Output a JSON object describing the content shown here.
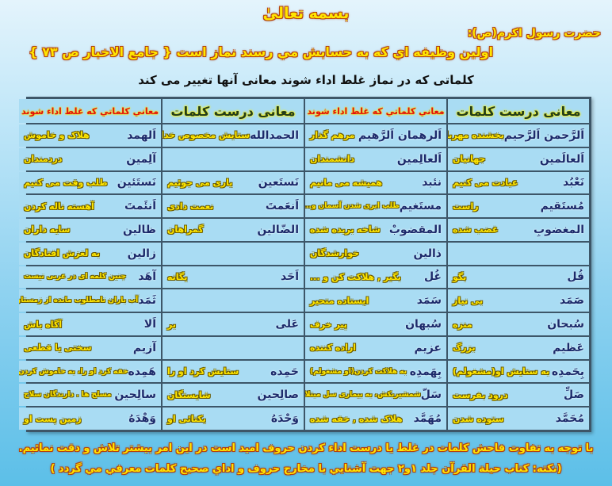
{
  "header": {
    "title": "بسمه تعالیٰ",
    "hadith_source": "حضرت رسول اکرم(ص):",
    "hadith": "اولین وظیفه اي که به حسابش مي رسند نماز است { جامع الاخبار ص ۷۳ }",
    "subtitle": "کلماتی که در نماز غلط اداء شوند معانی آنها تغییر می کند"
  },
  "table": {
    "headers": [
      "معانی درست کلمات",
      "معاني کلماتي که غلط اداء شوند",
      "معانی درست کلمات",
      "معاني کلماتي که غلط اداء شوند"
    ],
    "rows": [
      [
        {
          "word": "اَلرَّحمن اَلرَّحیم",
          "meaning": "بخشنده مهربان"
        },
        {
          "word": "اَلرهمان اَلرَّهیم",
          "meaning": "مرهم گذار"
        },
        {
          "word": "الحمدالله",
          "meaning": "ستایش مخصوص خداست"
        },
        {
          "word": "اَلهمد",
          "meaning": "هلاک و خاموش"
        }
      ],
      [
        {
          "word": "اَلعالَمین",
          "meaning": "جهانیان"
        },
        {
          "word": "اَلعالِمین",
          "meaning": "دانشمندان"
        },
        {
          "word": "",
          "meaning": ""
        },
        {
          "word": "آلِمین",
          "meaning": "دردمندان"
        }
      ],
      [
        {
          "word": "نَعْبُد",
          "meaning": "عبادت می کنیم"
        },
        {
          "word": "نئبد",
          "meaning": "همیشه می مانیم"
        },
        {
          "word": "نَستَعین",
          "meaning": "یاری می جوئیم"
        },
        {
          "word": "نَستَئین",
          "meaning": "طلب وقت می کنیم"
        }
      ],
      [
        {
          "word": "مُستَقیم",
          "meaning": "راست"
        },
        {
          "word": "مستَغیم",
          "meaning": "طلب ابری شدن آسمان و... کنند"
        },
        {
          "word": "اَنعَمتَ",
          "meaning": "نعمت دادی"
        },
        {
          "word": "اَنئَمتَ",
          "meaning": "آهسته ناله کردن"
        }
      ],
      [
        {
          "word": "المغضوبِ",
          "meaning": "غضب شده"
        },
        {
          "word": "المقضوبْ",
          "meaning": "شاخه بریده شده"
        },
        {
          "word": "الضّالین",
          "meaning": "گمراهان"
        },
        {
          "word": "ظالین",
          "meaning": "سایه داران"
        }
      ],
      [
        {
          "word": "",
          "meaning": ""
        },
        {
          "word": "ذالین",
          "meaning": "خوارشدگان"
        },
        {
          "word": "",
          "meaning": ""
        },
        {
          "word": "زالین",
          "meaning": "به لغزش افتادگان"
        }
      ],
      [
        {
          "word": "قُل",
          "meaning": "بگو"
        },
        {
          "word": "غُل",
          "meaning": "بگیر , هلاکت کن و ..."
        },
        {
          "word": "اَحَد",
          "meaning": "یگانه"
        },
        {
          "word": "آهَد",
          "meaning": "چنین کلمه ای در عربی نیست"
        }
      ],
      [
        {
          "word": "صَمَد",
          "meaning": "بی نیاز"
        },
        {
          "word": "سَمَد",
          "meaning": "ایستاده متحیر"
        },
        {
          "word": "",
          "meaning": ""
        },
        {
          "word": "ثَمَد",
          "meaning": "آب باران نامطلوب مانده از زمستان"
        }
      ],
      [
        {
          "word": "سُبحان",
          "meaning": "منزه"
        },
        {
          "word": "سُبهان",
          "meaning": "پیر خرف"
        },
        {
          "word": "عَلی",
          "meaning": "بر"
        },
        {
          "word": "اَلا",
          "meaning": "آگاه باش"
        }
      ],
      [
        {
          "word": "عَظیم",
          "meaning": "بزرگ"
        },
        {
          "word": "عزیم",
          "meaning": "اراده کننده"
        },
        {
          "word": "",
          "meaning": ""
        },
        {
          "word": "آزیم",
          "meaning": "سختی یا قطعی"
        }
      ],
      [
        {
          "word": "بِحَمدِه",
          "meaning": "به ستایش او(مشغولم)"
        },
        {
          "word": "بِهَمدِه",
          "meaning": "به هلاکت کردن(او مشغولم)"
        },
        {
          "word": "حَمِده",
          "meaning": "ستایش کرد او را"
        },
        {
          "word": "هَمِده",
          "meaning": "خفه کرد او را، به خاموش کردن وادارش کرد"
        }
      ],
      [
        {
          "word": "صَلِّ",
          "meaning": "درود بفرست"
        },
        {
          "word": "سَلّ",
          "meaning": "شمشیربکش، به بیماری سل مبتلاکن"
        },
        {
          "word": "صالِحین",
          "meaning": "شایستگان"
        },
        {
          "word": "سالِحین",
          "meaning": "مسلح ها . دارندگان سلاح"
        }
      ],
      [
        {
          "word": "مُحَمَّد",
          "meaning": "ستوده شدن"
        },
        {
          "word": "مُهَمَّد",
          "meaning": "هلاک شده , خفه شده"
        },
        {
          "word": "وَحْدَهُ",
          "meaning": "یکتائی او"
        },
        {
          "word": "وَهْدَهُ",
          "meaning": "زمین پست او"
        }
      ]
    ]
  },
  "footer": {
    "line1": "با توجه به تفاوت فاحش کلمات در غلط یا درست اداء کردن حروف امید است در این امر بیشتر تلاش و دقت نمائیم.",
    "line2": "(نکته: کتاب حیلة القرآن جلد ۱و۲ جهت آشنایي با مخارج حروف و اداي صحیح کلمات معرفي مي گردد )"
  },
  "colors": {
    "correct_header": "#233d1a",
    "wrong_header": "#e01010",
    "meaning": "#ffe600",
    "word": "#1c2a6b",
    "cell": "#a9dcf3"
  }
}
